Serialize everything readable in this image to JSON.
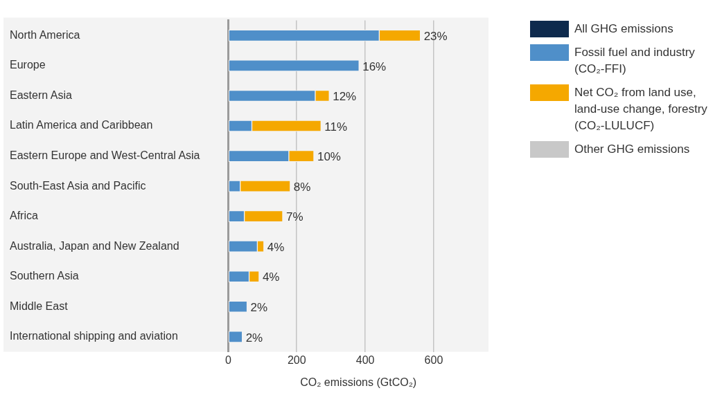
{
  "chart_data": {
    "type": "bar",
    "orientation": "horizontal",
    "stacked": true,
    "categories": [
      "North America",
      "Europe",
      "Eastern Asia",
      "Latin America and Caribbean",
      "Eastern Europe and West-Central Asia",
      "South-East Asia and Pacific",
      "Africa",
      "Australia, Japan and New Zealand",
      "Southern Asia",
      "Middle East",
      "International shipping and aviation"
    ],
    "series": [
      {
        "name": "All GHG emissions",
        "color": "#0e2a4d",
        "values": [
          null,
          null,
          null,
          null,
          null,
          null,
          null,
          null,
          null,
          null,
          null
        ]
      },
      {
        "name": "Fossil fuel and industry (CO₂-FFI)",
        "color": "#4f8fc9",
        "values": [
          441,
          382,
          254,
          69,
          177,
          35,
          47,
          85,
          61,
          55,
          41
        ]
      },
      {
        "name": "Net CO₂ from land use, land-use change, forestry (CO₂-LULUCF)",
        "color": "#f5a800",
        "values": [
          120,
          null,
          41,
          202,
          73,
          146,
          112,
          19,
          29,
          null,
          null
        ]
      },
      {
        "name": "Other GHG emissions",
        "color": "#c8c8c8",
        "values": [
          null,
          null,
          null,
          null,
          null,
          null,
          null,
          null,
          null,
          null,
          null
        ]
      }
    ],
    "annotations": [
      {
        "text": "23%",
        "x": 561,
        "y": "North America"
      },
      {
        "text": "16%",
        "x": 382,
        "y": "Europe"
      },
      {
        "text": "12%",
        "x": 295,
        "y": "Eastern Asia"
      },
      {
        "text": "11%",
        "x": 271,
        "y": "Latin America and Caribbean"
      },
      {
        "text": "10%",
        "x": 250,
        "y": "Eastern Europe and West-Central Asia"
      },
      {
        "text": "8%",
        "x": 181,
        "y": "South-East Asia and Pacific"
      },
      {
        "text": "7%",
        "x": 159,
        "y": "Africa"
      },
      {
        "text": "4%",
        "x": 104,
        "y": "Australia, Japan and New Zealand"
      },
      {
        "text": "4%",
        "x": 90,
        "y": "Southern Asia"
      },
      {
        "text": "2%",
        "x": 55,
        "y": "Middle East"
      },
      {
        "text": "2%",
        "x": 41,
        "y": "International shipping and aviation"
      }
    ],
    "xlabel": "CO₂ emissions (GtCO₂)",
    "xlim": [
      0,
      760
    ],
    "xticks": [
      0,
      200,
      400,
      600
    ],
    "grid": "x",
    "legend": "right"
  }
}
